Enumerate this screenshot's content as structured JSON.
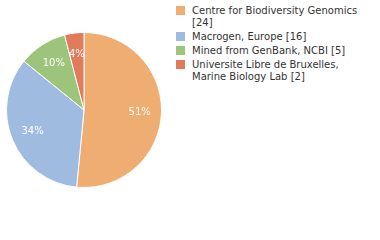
{
  "chart_data": {
    "type": "pie",
    "categories": [
      "Centre for Biodiversity Genomics [24]",
      "Macrogen, Europe [16]",
      "Mined from GenBank, NCBI [5]",
      "Universite Libre de Bruxelles, Marine Biology Lab [2]"
    ],
    "values": [
      51,
      34,
      10,
      4
    ],
    "value_labels": [
      "51%",
      "34%",
      "10%",
      "4%"
    ],
    "colors": [
      "#f0ad72",
      "#a0bbe0",
      "#9cc47a",
      "#e07b5c"
    ],
    "data_labels": true,
    "legend": "top-right"
  }
}
